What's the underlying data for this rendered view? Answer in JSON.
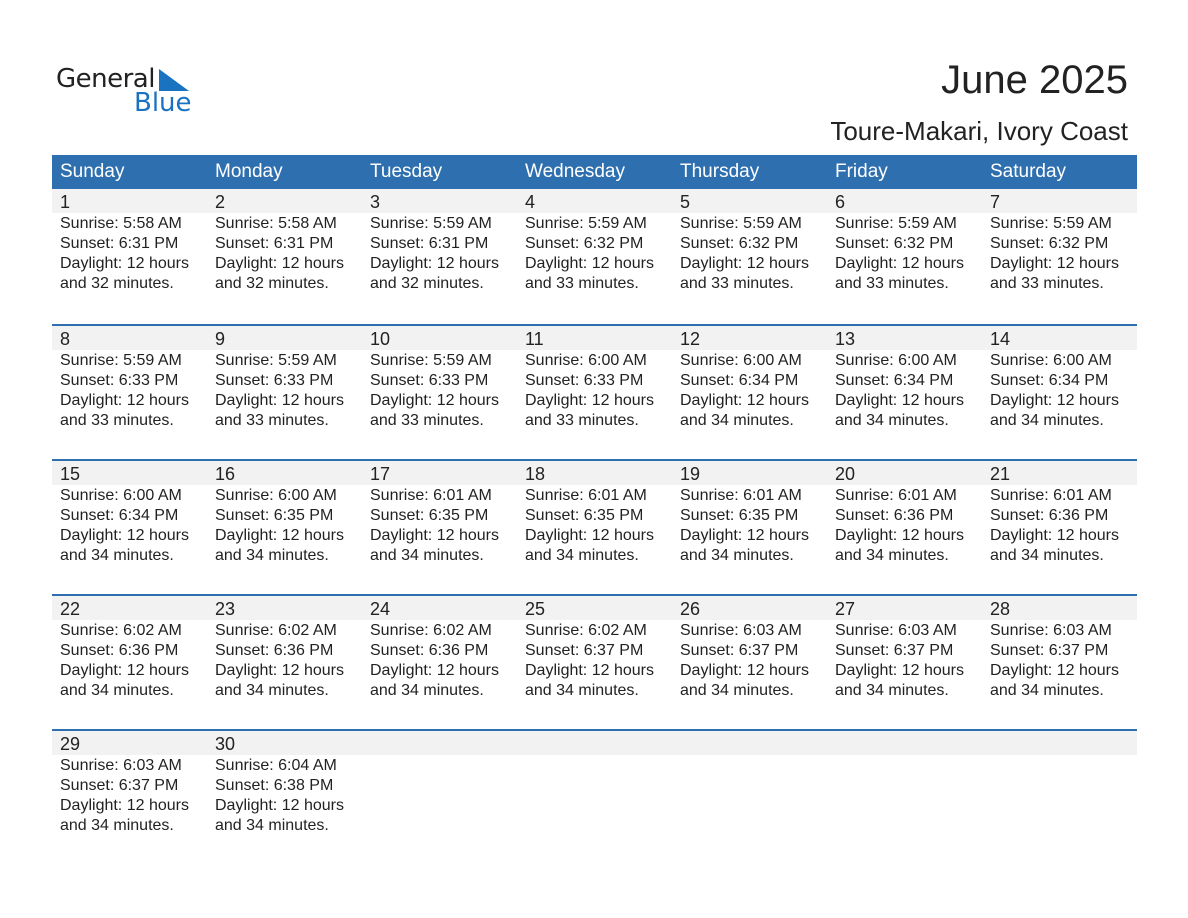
{
  "logo": {
    "line1": "General",
    "line2": "Blue"
  },
  "title": "June 2025",
  "subtitle": "Toure-Makari, Ivory Coast",
  "colors": {
    "header": "#2e6fb0",
    "band": "#f2f2f2",
    "logo_blue": "#1a73c0"
  },
  "weekdays": [
    "Sunday",
    "Monday",
    "Tuesday",
    "Wednesday",
    "Thursday",
    "Friday",
    "Saturday"
  ],
  "weeks": [
    [
      {
        "day": "1",
        "sunrise": "Sunrise: 5:58 AM",
        "sunset": "Sunset: 6:31 PM",
        "daylight": "Daylight: 12 hours",
        "minutes": "and 32 minutes."
      },
      {
        "day": "2",
        "sunrise": "Sunrise: 5:58 AM",
        "sunset": "Sunset: 6:31 PM",
        "daylight": "Daylight: 12 hours",
        "minutes": "and 32 minutes."
      },
      {
        "day": "3",
        "sunrise": "Sunrise: 5:59 AM",
        "sunset": "Sunset: 6:31 PM",
        "daylight": "Daylight: 12 hours",
        "minutes": "and 32 minutes."
      },
      {
        "day": "4",
        "sunrise": "Sunrise: 5:59 AM",
        "sunset": "Sunset: 6:32 PM",
        "daylight": "Daylight: 12 hours",
        "minutes": "and 33 minutes."
      },
      {
        "day": "5",
        "sunrise": "Sunrise: 5:59 AM",
        "sunset": "Sunset: 6:32 PM",
        "daylight": "Daylight: 12 hours",
        "minutes": "and 33 minutes."
      },
      {
        "day": "6",
        "sunrise": "Sunrise: 5:59 AM",
        "sunset": "Sunset: 6:32 PM",
        "daylight": "Daylight: 12 hours",
        "minutes": "and 33 minutes."
      },
      {
        "day": "7",
        "sunrise": "Sunrise: 5:59 AM",
        "sunset": "Sunset: 6:32 PM",
        "daylight": "Daylight: 12 hours",
        "minutes": "and 33 minutes."
      }
    ],
    [
      {
        "day": "8",
        "sunrise": "Sunrise: 5:59 AM",
        "sunset": "Sunset: 6:33 PM",
        "daylight": "Daylight: 12 hours",
        "minutes": "and 33 minutes."
      },
      {
        "day": "9",
        "sunrise": "Sunrise: 5:59 AM",
        "sunset": "Sunset: 6:33 PM",
        "daylight": "Daylight: 12 hours",
        "minutes": "and 33 minutes."
      },
      {
        "day": "10",
        "sunrise": "Sunrise: 5:59 AM",
        "sunset": "Sunset: 6:33 PM",
        "daylight": "Daylight: 12 hours",
        "minutes": "and 33 minutes."
      },
      {
        "day": "11",
        "sunrise": "Sunrise: 6:00 AM",
        "sunset": "Sunset: 6:33 PM",
        "daylight": "Daylight: 12 hours",
        "minutes": "and 33 minutes."
      },
      {
        "day": "12",
        "sunrise": "Sunrise: 6:00 AM",
        "sunset": "Sunset: 6:34 PM",
        "daylight": "Daylight: 12 hours",
        "minutes": "and 34 minutes."
      },
      {
        "day": "13",
        "sunrise": "Sunrise: 6:00 AM",
        "sunset": "Sunset: 6:34 PM",
        "daylight": "Daylight: 12 hours",
        "minutes": "and 34 minutes."
      },
      {
        "day": "14",
        "sunrise": "Sunrise: 6:00 AM",
        "sunset": "Sunset: 6:34 PM",
        "daylight": "Daylight: 12 hours",
        "minutes": "and 34 minutes."
      }
    ],
    [
      {
        "day": "15",
        "sunrise": "Sunrise: 6:00 AM",
        "sunset": "Sunset: 6:34 PM",
        "daylight": "Daylight: 12 hours",
        "minutes": "and 34 minutes."
      },
      {
        "day": "16",
        "sunrise": "Sunrise: 6:00 AM",
        "sunset": "Sunset: 6:35 PM",
        "daylight": "Daylight: 12 hours",
        "minutes": "and 34 minutes."
      },
      {
        "day": "17",
        "sunrise": "Sunrise: 6:01 AM",
        "sunset": "Sunset: 6:35 PM",
        "daylight": "Daylight: 12 hours",
        "minutes": "and 34 minutes."
      },
      {
        "day": "18",
        "sunrise": "Sunrise: 6:01 AM",
        "sunset": "Sunset: 6:35 PM",
        "daylight": "Daylight: 12 hours",
        "minutes": "and 34 minutes."
      },
      {
        "day": "19",
        "sunrise": "Sunrise: 6:01 AM",
        "sunset": "Sunset: 6:35 PM",
        "daylight": "Daylight: 12 hours",
        "minutes": "and 34 minutes."
      },
      {
        "day": "20",
        "sunrise": "Sunrise: 6:01 AM",
        "sunset": "Sunset: 6:36 PM",
        "daylight": "Daylight: 12 hours",
        "minutes": "and 34 minutes."
      },
      {
        "day": "21",
        "sunrise": "Sunrise: 6:01 AM",
        "sunset": "Sunset: 6:36 PM",
        "daylight": "Daylight: 12 hours",
        "minutes": "and 34 minutes."
      }
    ],
    [
      {
        "day": "22",
        "sunrise": "Sunrise: 6:02 AM",
        "sunset": "Sunset: 6:36 PM",
        "daylight": "Daylight: 12 hours",
        "minutes": "and 34 minutes."
      },
      {
        "day": "23",
        "sunrise": "Sunrise: 6:02 AM",
        "sunset": "Sunset: 6:36 PM",
        "daylight": "Daylight: 12 hours",
        "minutes": "and 34 minutes."
      },
      {
        "day": "24",
        "sunrise": "Sunrise: 6:02 AM",
        "sunset": "Sunset: 6:36 PM",
        "daylight": "Daylight: 12 hours",
        "minutes": "and 34 minutes."
      },
      {
        "day": "25",
        "sunrise": "Sunrise: 6:02 AM",
        "sunset": "Sunset: 6:37 PM",
        "daylight": "Daylight: 12 hours",
        "minutes": "and 34 minutes."
      },
      {
        "day": "26",
        "sunrise": "Sunrise: 6:03 AM",
        "sunset": "Sunset: 6:37 PM",
        "daylight": "Daylight: 12 hours",
        "minutes": "and 34 minutes."
      },
      {
        "day": "27",
        "sunrise": "Sunrise: 6:03 AM",
        "sunset": "Sunset: 6:37 PM",
        "daylight": "Daylight: 12 hours",
        "minutes": "and 34 minutes."
      },
      {
        "day": "28",
        "sunrise": "Sunrise: 6:03 AM",
        "sunset": "Sunset: 6:37 PM",
        "daylight": "Daylight: 12 hours",
        "minutes": "and 34 minutes."
      }
    ],
    [
      {
        "day": "29",
        "sunrise": "Sunrise: 6:03 AM",
        "sunset": "Sunset: 6:37 PM",
        "daylight": "Daylight: 12 hours",
        "minutes": "and 34 minutes."
      },
      {
        "day": "30",
        "sunrise": "Sunrise: 6:04 AM",
        "sunset": "Sunset: 6:38 PM",
        "daylight": "Daylight: 12 hours",
        "minutes": "and 34 minutes."
      }
    ]
  ]
}
